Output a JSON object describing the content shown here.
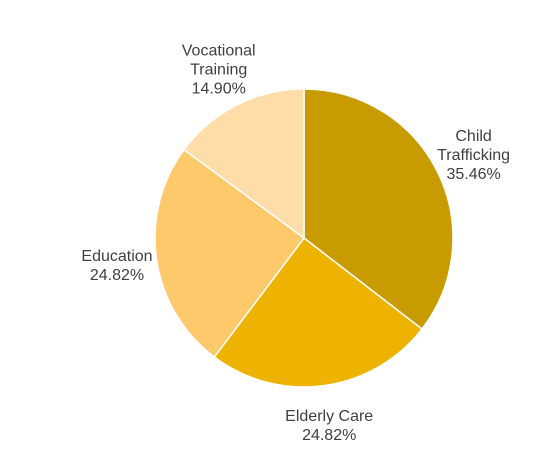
{
  "chart_data": {
    "type": "pie",
    "title": "",
    "legend": "none",
    "slices": [
      {
        "label_lines": [
          "Child",
          "Trafficking"
        ],
        "value": 35.46,
        "value_label": "35.46%",
        "color": "#C89B00"
      },
      {
        "label_lines": [
          "Elderly Care"
        ],
        "value": 24.82,
        "value_label": "24.82%",
        "color": "#EEB300"
      },
      {
        "label_lines": [
          "Education"
        ],
        "value": 24.82,
        "value_label": "24.82%",
        "color": "#FDC96A"
      },
      {
        "label_lines": [
          "Vocational",
          "Training"
        ],
        "value": 14.9,
        "value_label": "14.90%",
        "color": "#FEDDA8"
      }
    ]
  }
}
